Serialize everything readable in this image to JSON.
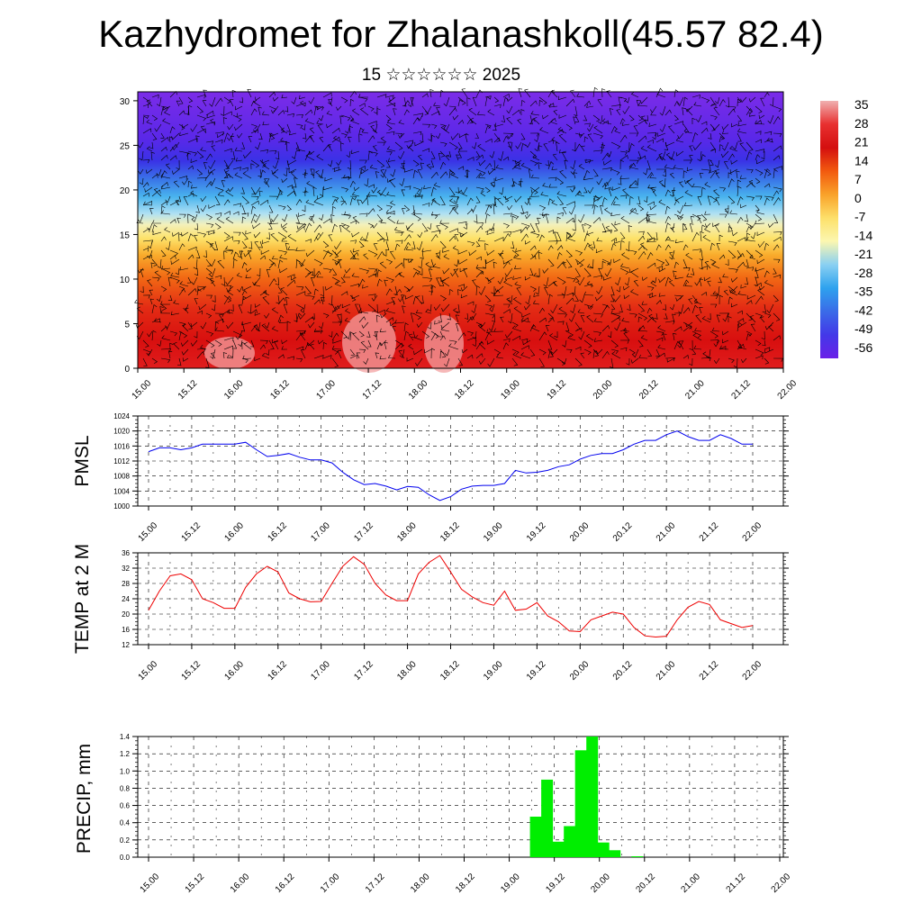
{
  "header": {
    "title": "Kazhydromet for Zhalanashkoll(45.57 82.4)",
    "subtitle": "15 ☆☆☆☆☆☆ 2025"
  },
  "chart_data": [
    {
      "type": "heatmap",
      "name": "cross-section",
      "x_labels": [
        "15.00",
        "15.12",
        "16.00",
        "16.12",
        "17.00",
        "17.12",
        "18.00",
        "18.12",
        "19.00",
        "19.12",
        "20.00",
        "20.12",
        "21.00",
        "21.12",
        "22.00"
      ],
      "y_ticks": [
        0,
        5,
        10,
        15,
        20,
        25,
        30
      ],
      "ylim": [
        0,
        31
      ],
      "colorbar_labels": [
        "35",
        "28",
        "21",
        "14",
        "7",
        "0",
        "-7",
        "-14",
        "-21",
        "-28",
        "-35",
        "-42",
        "-49",
        "-56"
      ],
      "colors": [
        "#f0b0b0",
        "#e83030",
        "#d40f0f",
        "#f25a0f",
        "#f9a22a",
        "#fde06a",
        "#fcf7b0",
        "#8ad0f2",
        "#2ea2ee",
        "#3a6be8",
        "#4338e8",
        "#6a20e8"
      ],
      "wind_barbs": true
    },
    {
      "type": "line",
      "name": "pmsl",
      "ylabel": "PMSL",
      "ylim": [
        1000,
        1024
      ],
      "y_ticks": [
        1000,
        1004,
        1008,
        1012,
        1016,
        1020,
        1024
      ],
      "x_labels": [
        "15.00",
        "15.12",
        "16.00",
        "16.12",
        "17.00",
        "17.12",
        "18.00",
        "18.12",
        "19.00",
        "19.12",
        "20.00",
        "20.12",
        "21.00",
        "21.12",
        "22.00"
      ],
      "series": [
        {
          "color": "#0000ee",
          "values": [
            1014.5,
            1015.5,
            1015.5,
            1015,
            1015.5,
            1016.5,
            1016.5,
            1016.5,
            1016.5,
            1017,
            1015,
            1013.2,
            1013.5,
            1014,
            1013,
            1012.3,
            1012.3,
            1011.5,
            1009,
            1007,
            1005.7,
            1006,
            1005.3,
            1004.3,
            1005.2,
            1005,
            1003,
            1001.5,
            1002.5,
            1004.5,
            1005.3,
            1005.5,
            1005.5,
            1006,
            1009.5,
            1008.8,
            1009,
            1009.5,
            1010.5,
            1011,
            1012.5,
            1013.5,
            1014,
            1014,
            1015,
            1016.5,
            1017.5,
            1017.5,
            1019,
            1020,
            1018.5,
            1017.5,
            1017.5,
            1019,
            1018,
            1016.5,
            1016.5
          ]
        }
      ]
    },
    {
      "type": "line",
      "name": "temp2m",
      "ylabel": "TEMP at 2 M",
      "ylim": [
        12,
        36
      ],
      "y_ticks": [
        12,
        16,
        20,
        24,
        28,
        32,
        36
      ],
      "x_labels": [
        "15.00",
        "15.12",
        "16.00",
        "16.12",
        "17.00",
        "17.12",
        "18.00",
        "18.12",
        "19.00",
        "19.12",
        "20.00",
        "20.12",
        "21.00",
        "21.12",
        "22.00"
      ],
      "series": [
        {
          "color": "#ee0000",
          "values": [
            21,
            26,
            30,
            30.5,
            29,
            24,
            23,
            21.5,
            21.5,
            27,
            30.5,
            32.5,
            31,
            25.5,
            24,
            23.2,
            23.3,
            28,
            32.5,
            35,
            33,
            28,
            25,
            23.5,
            23.5,
            30.5,
            33.5,
            35.3,
            31,
            26.5,
            24.5,
            23,
            22.3,
            26,
            21,
            21.3,
            23,
            19.5,
            18,
            15.6,
            15.4,
            18.5,
            19.5,
            20.5,
            20,
            16.5,
            14.3,
            14,
            14.2,
            18.5,
            21.8,
            23.3,
            22.5,
            18.5,
            17.5,
            16.5,
            17
          ]
        }
      ]
    },
    {
      "type": "bar",
      "name": "precip",
      "ylabel": "PRECIP, mm",
      "ylim": [
        0,
        1.4
      ],
      "y_ticks": [
        "0.0",
        "0.2",
        "0.4",
        "0.6",
        "0.8",
        "1.0",
        "1.2",
        "1.4"
      ],
      "x_labels": [
        "15.00",
        "15.12",
        "16.00",
        "16.12",
        "17.00",
        "17.12",
        "18.00",
        "18.12",
        "19.00",
        "19.12",
        "20.00",
        "20.12",
        "21.00",
        "21.12",
        "22.00"
      ],
      "color": "#00ee00",
      "bars": [
        {
          "t": 34,
          "v": 0.47
        },
        {
          "t": 35,
          "v": 0.9
        },
        {
          "t": 36,
          "v": 0.18
        },
        {
          "t": 37,
          "v": 0.36
        },
        {
          "t": 38,
          "v": 1.24
        },
        {
          "t": 39,
          "v": 1.4
        },
        {
          "t": 40,
          "v": 0.17
        },
        {
          "t": 41,
          "v": 0.08
        },
        {
          "t": 43,
          "v": 0.01
        }
      ]
    }
  ]
}
